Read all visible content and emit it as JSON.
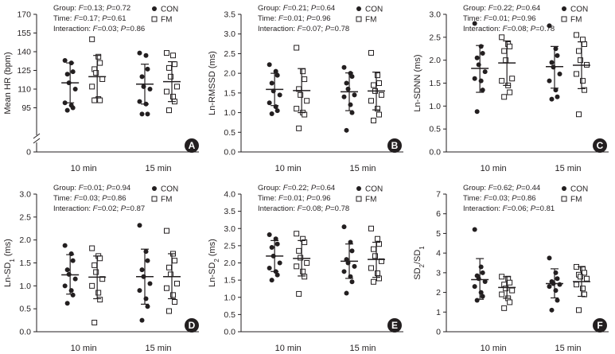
{
  "colors": {
    "ink": "#231f20",
    "background": "#ffffff"
  },
  "legend": {
    "con": "CON",
    "fm": "FM"
  },
  "chart_data": [
    {
      "type": "scatter",
      "panel": "A",
      "ylabel": "Mean HR (bpm)",
      "ylim": [
        80,
        170
      ],
      "yticks": [
        0,
        95,
        110,
        125,
        140,
        155,
        170
      ],
      "y_axis_break": true,
      "yticks_decimals": 0,
      "categories": [
        "10 min",
        "15 min"
      ],
      "stats": [
        {
          "label": "Group",
          "F": "0.13",
          "P": "0.72"
        },
        {
          "label": "Time",
          "F": "0.17",
          "P": "0.61"
        },
        {
          "label": "Interaction",
          "F": "0.03",
          "P": "0.86"
        }
      ],
      "series": [
        {
          "name": "CON",
          "groups": [
            {
              "category": "10 min",
              "points": [
                133,
                131,
                124,
                122,
                115,
                110,
                99,
                97,
                95,
                93
              ],
              "mean": 115,
              "sd_low": 99,
              "sd_high": 131
            },
            {
              "category": "15 min",
              "points": [
                139,
                137,
                126,
                120,
                112,
                110,
                100,
                98,
                90,
                90
              ],
              "mean": 114,
              "sd_low": 98,
              "sd_high": 130
            }
          ]
        },
        {
          "name": "FM",
          "groups": [
            {
              "category": "10 min",
              "points": [
                150,
                136,
                131,
                126,
                123,
                118,
                112,
                102,
                101,
                101
              ],
              "mean": 120,
              "sd_low": 103,
              "sd_high": 137
            },
            {
              "category": "15 min",
              "points": [
                139,
                137,
                130,
                127,
                120,
                112,
                108,
                104,
                100,
                93
              ],
              "mean": 116,
              "sd_low": 100,
              "sd_high": 132
            }
          ]
        }
      ]
    },
    {
      "type": "scatter",
      "panel": "B",
      "ylabel": "Ln-RMSSD (ms)",
      "ylim": [
        0,
        3.5
      ],
      "yticks": [
        0,
        0.5,
        1.0,
        1.5,
        2.0,
        2.5,
        3.0,
        3.5
      ],
      "yticks_decimals": 1,
      "categories": [
        "10 min",
        "15 min"
      ],
      "stats": [
        {
          "label": "Group",
          "F": "0.21",
          "P": "0.64"
        },
        {
          "label": "Time",
          "F": "0.01",
          "P": "0.96"
        },
        {
          "label": "Interaction",
          "F": "0.07",
          "P": "0.78"
        }
      ],
      "series": [
        {
          "name": "CON",
          "groups": [
            {
              "category": "10 min",
              "points": [
                2.22,
                2.05,
                1.95,
                1.75,
                1.55,
                1.45,
                1.25,
                1.15,
                1.05,
                0.97
              ],
              "mean": 1.59,
              "sd_low": 1.18,
              "sd_high": 2.0
            },
            {
              "category": "15 min",
              "points": [
                2.15,
                2.0,
                1.92,
                1.75,
                1.6,
                1.45,
                1.4,
                1.2,
                1.0,
                0.55
              ],
              "mean": 1.53,
              "sd_low": 1.05,
              "sd_high": 2.01
            }
          ]
        },
        {
          "name": "FM",
          "groups": [
            {
              "category": "10 min",
              "points": [
                2.65,
                2.05,
                1.85,
                1.6,
                1.45,
                1.3,
                1.1,
                1.0,
                0.95,
                0.6
              ],
              "mean": 1.56,
              "sd_low": 1.0,
              "sd_high": 2.12
            },
            {
              "category": "15 min",
              "points": [
                2.52,
                1.95,
                1.75,
                1.7,
                1.55,
                1.45,
                1.3,
                1.1,
                0.95,
                0.8
              ],
              "mean": 1.55,
              "sd_low": 1.07,
              "sd_high": 2.03
            }
          ]
        }
      ]
    },
    {
      "type": "scatter",
      "panel": "C",
      "ylabel": "Ln-SDNN (ms)",
      "ylim": [
        0,
        3.0
      ],
      "yticks": [
        0,
        0.5,
        1.0,
        1.5,
        2.0,
        2.5,
        3.0
      ],
      "yticks_decimals": 1,
      "categories": [
        "10 min",
        "15 min"
      ],
      "stats": [
        {
          "label": "Group",
          "F": "0.22",
          "P": "0.64"
        },
        {
          "label": "Time",
          "F": "0.01",
          "P": "0.96"
        },
        {
          "label": "Interaction",
          "F": "0.08",
          "P": "0.78"
        }
      ],
      "series": [
        {
          "name": "CON",
          "groups": [
            {
              "category": "10 min",
              "points": [
                2.8,
                2.3,
                2.15,
                2.05,
                1.9,
                1.75,
                1.6,
                1.55,
                1.35,
                0.88
              ],
              "mean": 1.82,
              "sd_low": 1.3,
              "sd_high": 2.32
            },
            {
              "category": "15 min",
              "points": [
                2.75,
                2.25,
                2.1,
                1.95,
                1.85,
                1.7,
                1.55,
                1.35,
                1.2,
                1.15
              ],
              "mean": 1.86,
              "sd_low": 1.39,
              "sd_high": 2.3
            }
          ]
        },
        {
          "name": "FM",
          "groups": [
            {
              "category": "10 min",
              "points": [
                2.5,
                2.35,
                2.3,
                2.2,
                2.0,
                1.6,
                1.55,
                1.45,
                1.3,
                1.2
              ],
              "mean": 1.94,
              "sd_low": 1.45,
              "sd_high": 2.42
            },
            {
              "category": "15 min",
              "points": [
                2.55,
                2.45,
                2.35,
                2.2,
                2.0,
                1.9,
                1.7,
                1.55,
                1.35,
                0.82
              ],
              "mean": 1.89,
              "sd_low": 1.38,
              "sd_high": 2.4
            }
          ]
        }
      ]
    },
    {
      "type": "scatter",
      "panel": "D",
      "ylabel": "Ln-SD1 (ms)",
      "ylabel_main": "Ln-SD",
      "ylabel_sub": "1",
      "ylabel_tail": " (ms)",
      "ylim": [
        0,
        3.0
      ],
      "yticks": [
        0,
        0.5,
        1.0,
        1.5,
        2.0,
        2.5,
        3.0
      ],
      "yticks_decimals": 1,
      "categories": [
        "10 min",
        "15 min"
      ],
      "stats": [
        {
          "label": "Group",
          "F": "0.01",
          "P": "0.94"
        },
        {
          "label": "Time",
          "F": "0.03",
          "P": "0.86"
        },
        {
          "label": "Interaction",
          "F": "0.02",
          "P": "0.87"
        }
      ],
      "series": [
        {
          "name": "CON",
          "groups": [
            {
              "category": "10 min",
              "points": [
                1.88,
                1.7,
                1.55,
                1.35,
                1.25,
                1.15,
                1.0,
                0.9,
                0.8,
                0.62
              ],
              "mean": 1.24,
              "sd_low": 0.82,
              "sd_high": 1.68
            },
            {
              "category": "15 min",
              "points": [
                2.32,
                1.75,
                1.55,
                1.35,
                1.2,
                1.05,
                0.9,
                0.72,
                0.55,
                0.25
              ],
              "mean": 1.2,
              "sd_low": 0.6,
              "sd_high": 1.8
            },
            {
              "category": "",
              "points": []
            }
          ]
        },
        {
          "name": "FM",
          "groups": [
            {
              "category": "10 min",
              "points": [
                1.82,
                1.65,
                1.6,
                1.45,
                1.3,
                1.15,
                1.0,
                0.85,
                0.7,
                0.2
              ],
              "mean": 1.19,
              "sd_low": 0.72,
              "sd_high": 1.65
            },
            {
              "category": "15 min",
              "points": [
                2.2,
                1.7,
                1.55,
                1.4,
                1.25,
                1.05,
                0.95,
                0.8,
                0.65,
                0.45
              ],
              "mean": 1.2,
              "sd_low": 0.72,
              "sd_high": 1.7
            }
          ]
        }
      ]
    },
    {
      "type": "scatter",
      "panel": "E",
      "ylabel": "Ln-SD2 (ms)",
      "ylabel_main": "Ln-SD",
      "ylabel_sub": "2",
      "ylabel_tail": " (ms)",
      "ylim": [
        0,
        4.0
      ],
      "yticks": [
        0,
        0.5,
        1.0,
        1.5,
        2.0,
        2.5,
        3.0,
        3.5,
        4.0
      ],
      "yticks_decimals": 1,
      "categories": [
        "10 min",
        "15 min"
      ],
      "stats": [
        {
          "label": "Group",
          "F": "0.22",
          "P": "0.64"
        },
        {
          "label": "Time",
          "F": "0.01",
          "P": "0.96"
        },
        {
          "label": "Interaction",
          "F": "0.08",
          "P": "0.78"
        }
      ],
      "series": [
        {
          "name": "CON",
          "groups": [
            {
              "category": "10 min",
              "points": [
                2.82,
                2.7,
                2.55,
                2.45,
                2.2,
                2.0,
                1.85,
                1.75,
                1.65,
                1.5
              ],
              "mean": 2.2,
              "sd_low": 1.75,
              "sd_high": 2.65
            },
            {
              "category": "15 min",
              "points": [
                3.05,
                2.6,
                2.35,
                2.1,
                2.0,
                1.9,
                1.75,
                1.6,
                1.45,
                1.12
              ],
              "mean": 2.05,
              "sd_low": 1.55,
              "sd_high": 2.55
            }
          ]
        },
        {
          "name": "FM",
          "groups": [
            {
              "category": "10 min",
              "points": [
                2.85,
                2.7,
                2.6,
                2.35,
                2.15,
                2.0,
                1.9,
                1.75,
                1.6,
                1.1
              ],
              "mean": 2.13,
              "sd_low": 1.62,
              "sd_high": 2.65
            },
            {
              "category": "15 min",
              "points": [
                3.0,
                2.7,
                2.55,
                2.4,
                2.2,
                2.05,
                1.85,
                1.7,
                1.55,
                1.45
              ],
              "mean": 2.1,
              "sd_low": 1.58,
              "sd_high": 2.6
            }
          ]
        }
      ]
    },
    {
      "type": "scatter",
      "panel": "F",
      "ylabel": "SD2/SD1",
      "ylabel_main": "SD",
      "ylabel_sub": "2",
      "ylabel_mid": "/SD",
      "ylabel_sub2": "1",
      "ylim": [
        0,
        7
      ],
      "yticks": [
        0,
        1,
        2,
        3,
        4,
        5,
        6,
        7
      ],
      "yticks_decimals": 0,
      "categories": [
        "10 min",
        "15 min"
      ],
      "stats": [
        {
          "label": "Group",
          "F": "0.62",
          "P": "0.44"
        },
        {
          "label": "Time",
          "F": "0.03",
          "P": "0.86"
        },
        {
          "label": "Interaction",
          "F": "0.06",
          "P": "0.81"
        }
      ],
      "series": [
        {
          "name": "CON",
          "groups": [
            {
              "category": "10 min",
              "points": [
                5.2,
                3.3,
                3.0,
                2.85,
                2.7,
                2.55,
                2.3,
                2.0,
                1.8,
                1.6
              ],
              "mean": 2.65,
              "sd_low": 1.65,
              "sd_high": 3.72
            },
            {
              "category": "15 min",
              "points": [
                3.75,
                3.0,
                2.7,
                2.55,
                2.45,
                2.4,
                2.3,
                2.1,
                1.6,
                1.1
              ],
              "mean": 2.45,
              "sd_low": 1.72,
              "sd_high": 3.2
            }
          ]
        },
        {
          "name": "FM",
          "groups": [
            {
              "category": "10 min",
              "points": [
                2.8,
                2.7,
                2.5,
                2.4,
                2.2,
                2.1,
                1.9,
                1.7,
                1.5,
                1.2
              ],
              "mean": 2.25,
              "sd_low": 1.7,
              "sd_high": 2.8
            },
            {
              "category": "15 min",
              "points": [
                3.3,
                3.2,
                3.0,
                2.9,
                2.8,
                2.7,
                2.4,
                2.2,
                1.9,
                1.1
              ],
              "mean": 2.55,
              "sd_low": 1.8,
              "sd_high": 3.3
            }
          ]
        }
      ]
    }
  ]
}
